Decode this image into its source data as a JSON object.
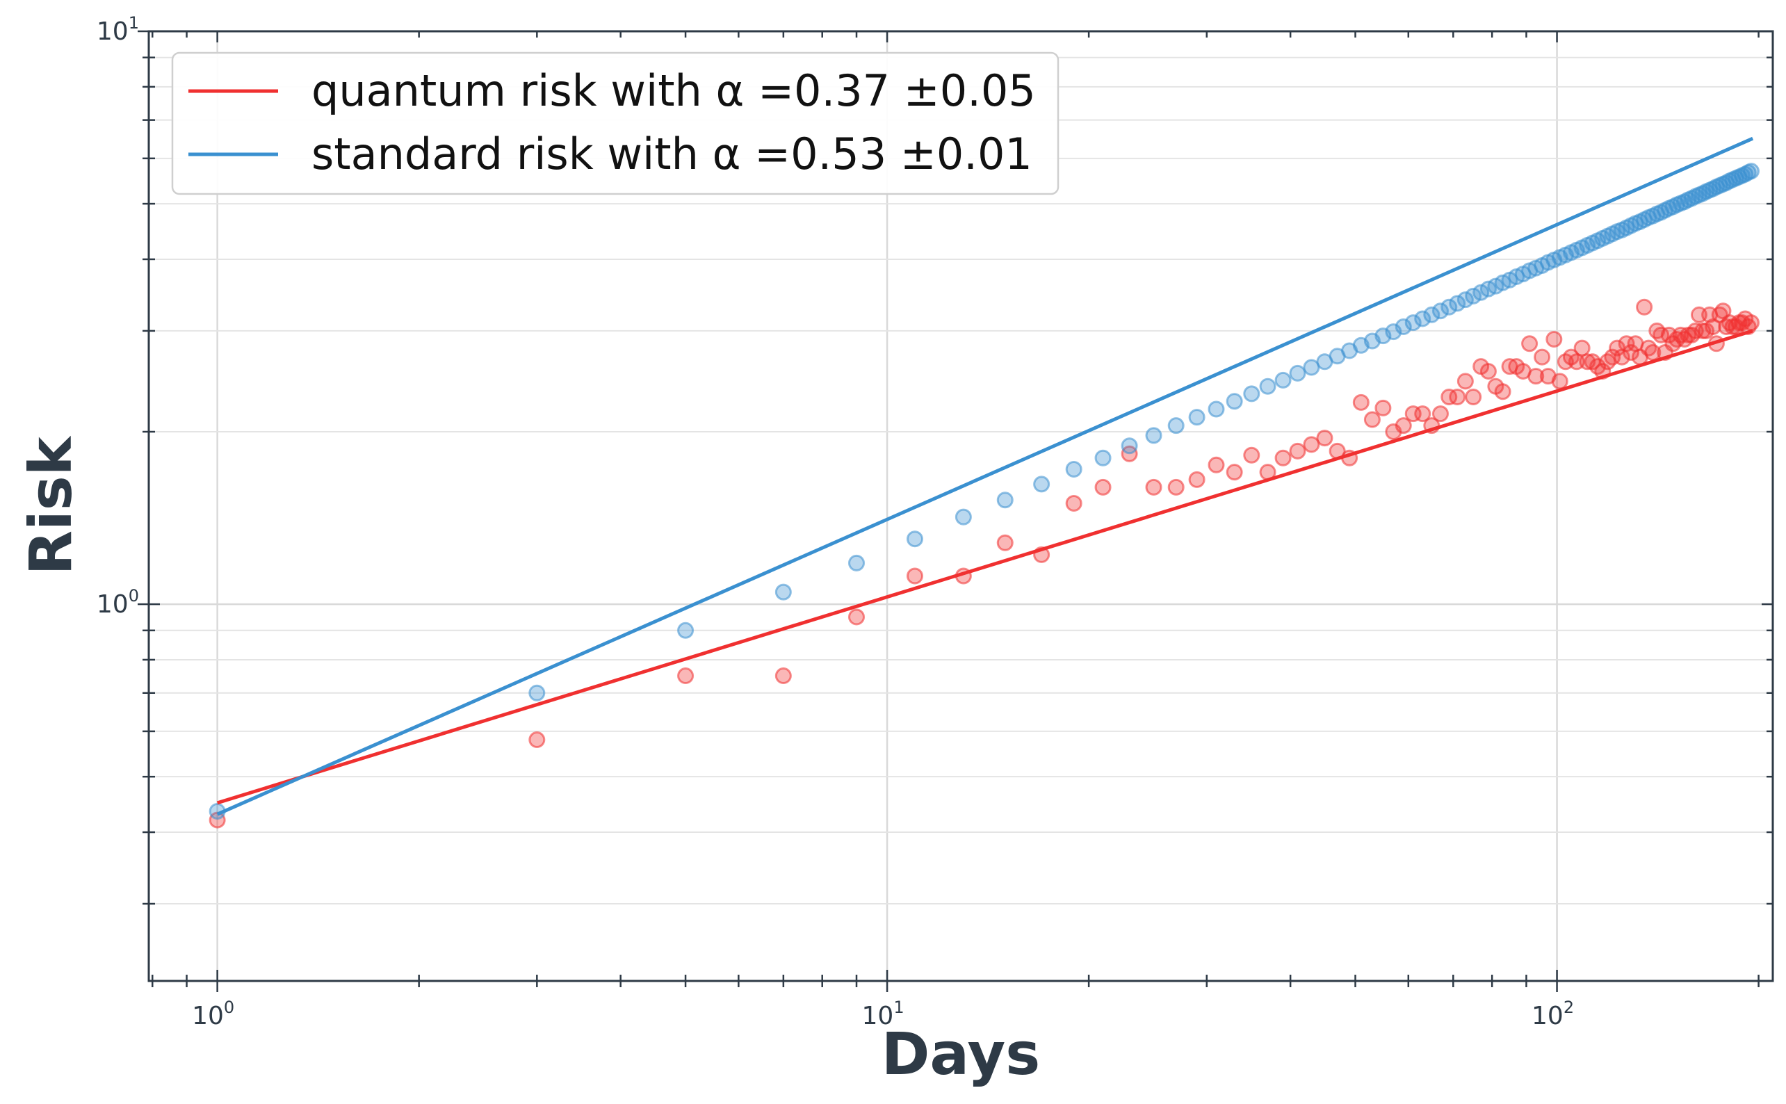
{
  "chart_data": {
    "type": "scatter",
    "xscale": "log",
    "yscale": "log",
    "xlim": [
      0.79,
      210
    ],
    "ylim": [
      0.22,
      10
    ],
    "xlabel": "Days",
    "ylabel": "Risk",
    "grid": true,
    "legend_position": "top-left",
    "x_ticks": [
      {
        "base": "10",
        "exp": "0"
      },
      {
        "base": "10",
        "exp": "1"
      },
      {
        "base": "10",
        "exp": "2"
      }
    ],
    "y_ticks": [
      {
        "base": "10",
        "exp": "0"
      },
      {
        "base": "10",
        "exp": "1"
      }
    ],
    "series": [
      {
        "name": "quantum risk with α =0.37 ±0.05",
        "color": "#f03030",
        "fit": {
          "x": [
            1,
            196
          ],
          "y": [
            0.45,
            3.0
          ]
        },
        "points": [
          [
            1,
            0.42
          ],
          [
            3,
            0.58
          ],
          [
            5,
            0.75
          ],
          [
            7,
            0.75
          ],
          [
            9,
            0.95
          ],
          [
            11,
            1.12
          ],
          [
            13,
            1.12
          ],
          [
            15,
            1.28
          ],
          [
            17,
            1.22
          ],
          [
            19,
            1.5
          ],
          [
            21,
            1.6
          ],
          [
            23,
            1.83
          ],
          [
            25,
            1.6
          ],
          [
            27,
            1.6
          ],
          [
            29,
            1.65
          ],
          [
            31,
            1.75
          ],
          [
            33,
            1.7
          ],
          [
            35,
            1.82
          ],
          [
            37,
            1.7
          ],
          [
            39,
            1.8
          ],
          [
            41,
            1.85
          ],
          [
            43,
            1.9
          ],
          [
            45,
            1.95
          ],
          [
            47,
            1.85
          ],
          [
            49,
            1.8
          ],
          [
            51,
            2.25
          ],
          [
            53,
            2.1
          ],
          [
            55,
            2.2
          ],
          [
            57,
            2.0
          ],
          [
            59,
            2.05
          ],
          [
            61,
            2.15
          ],
          [
            63,
            2.15
          ],
          [
            65,
            2.05
          ],
          [
            67,
            2.15
          ],
          [
            69,
            2.3
          ],
          [
            71,
            2.3
          ],
          [
            73,
            2.45
          ],
          [
            75,
            2.3
          ],
          [
            77,
            2.6
          ],
          [
            79,
            2.55
          ],
          [
            81,
            2.4
          ],
          [
            83,
            2.35
          ],
          [
            85,
            2.6
          ],
          [
            87,
            2.6
          ],
          [
            89,
            2.55
          ],
          [
            91,
            2.85
          ],
          [
            93,
            2.5
          ],
          [
            95,
            2.7
          ],
          [
            97,
            2.5
          ],
          [
            99,
            2.9
          ],
          [
            101,
            2.45
          ],
          [
            103,
            2.65
          ],
          [
            105,
            2.7
          ],
          [
            107,
            2.65
          ],
          [
            109,
            2.8
          ],
          [
            111,
            2.65
          ],
          [
            113,
            2.65
          ],
          [
            115,
            2.6
          ],
          [
            117,
            2.55
          ],
          [
            119,
            2.65
          ],
          [
            121,
            2.7
          ],
          [
            123,
            2.8
          ],
          [
            125,
            2.7
          ],
          [
            127,
            2.85
          ],
          [
            129,
            2.75
          ],
          [
            131,
            2.85
          ],
          [
            133,
            2.7
          ],
          [
            135,
            3.3
          ],
          [
            137,
            2.8
          ],
          [
            139,
            2.75
          ],
          [
            141,
            3.0
          ],
          [
            143,
            2.95
          ],
          [
            145,
            2.75
          ],
          [
            147,
            2.95
          ],
          [
            149,
            2.85
          ],
          [
            151,
            2.9
          ],
          [
            153,
            2.95
          ],
          [
            155,
            2.9
          ],
          [
            157,
            2.95
          ],
          [
            159,
            2.95
          ],
          [
            161,
            3.0
          ],
          [
            163,
            3.2
          ],
          [
            165,
            3.0
          ],
          [
            167,
            3.0
          ],
          [
            169,
            3.2
          ],
          [
            171,
            3.05
          ],
          [
            173,
            2.85
          ],
          [
            175,
            3.2
          ],
          [
            177,
            3.25
          ],
          [
            179,
            3.05
          ],
          [
            181,
            3.1
          ],
          [
            183,
            3.05
          ],
          [
            185,
            3.05
          ],
          [
            187,
            3.1
          ],
          [
            189,
            3.1
          ],
          [
            191,
            3.15
          ],
          [
            193,
            3.05
          ],
          [
            195,
            3.1
          ]
        ]
      },
      {
        "name": "standard risk with α =0.53 ±0.01",
        "color": "#3a90d0",
        "fit": {
          "x": [
            1,
            196
          ],
          "y": [
            0.43,
            6.5
          ]
        },
        "points": [
          [
            1,
            0.435
          ],
          [
            3,
            0.7
          ],
          [
            5,
            0.9
          ],
          [
            7,
            1.05
          ],
          [
            9,
            1.18
          ],
          [
            11,
            1.3
          ],
          [
            13,
            1.42
          ],
          [
            15,
            1.52
          ],
          [
            17,
            1.62
          ],
          [
            19,
            1.72
          ],
          [
            21,
            1.8
          ],
          [
            23,
            1.89
          ],
          [
            25,
            1.97
          ],
          [
            27,
            2.05
          ],
          [
            29,
            2.12
          ],
          [
            31,
            2.19
          ],
          [
            33,
            2.26
          ],
          [
            35,
            2.33
          ],
          [
            37,
            2.4
          ],
          [
            39,
            2.46
          ],
          [
            41,
            2.53
          ],
          [
            43,
            2.59
          ],
          [
            45,
            2.65
          ],
          [
            47,
            2.71
          ],
          [
            49,
            2.77
          ],
          [
            51,
            2.83
          ],
          [
            53,
            2.88
          ],
          [
            55,
            2.94
          ],
          [
            57,
            2.99
          ],
          [
            59,
            3.05
          ],
          [
            61,
            3.1
          ],
          [
            63,
            3.15
          ],
          [
            65,
            3.2
          ],
          [
            67,
            3.25
          ],
          [
            69,
            3.3
          ],
          [
            71,
            3.35
          ],
          [
            73,
            3.4
          ],
          [
            75,
            3.45
          ],
          [
            77,
            3.5
          ],
          [
            79,
            3.55
          ],
          [
            81,
            3.59
          ],
          [
            83,
            3.64
          ],
          [
            85,
            3.68
          ],
          [
            87,
            3.73
          ],
          [
            89,
            3.77
          ],
          [
            91,
            3.82
          ],
          [
            93,
            3.86
          ],
          [
            95,
            3.9
          ],
          [
            97,
            3.95
          ],
          [
            99,
            3.99
          ],
          [
            101,
            4.03
          ],
          [
            103,
            4.07
          ],
          [
            105,
            4.11
          ],
          [
            107,
            4.15
          ],
          [
            109,
            4.19
          ],
          [
            111,
            4.23
          ],
          [
            113,
            4.27
          ],
          [
            115,
            4.31
          ],
          [
            117,
            4.35
          ],
          [
            119,
            4.39
          ],
          [
            121,
            4.43
          ],
          [
            123,
            4.47
          ],
          [
            125,
            4.5
          ],
          [
            127,
            4.54
          ],
          [
            129,
            4.58
          ],
          [
            131,
            4.62
          ],
          [
            133,
            4.65
          ],
          [
            135,
            4.69
          ],
          [
            137,
            4.73
          ],
          [
            139,
            4.76
          ],
          [
            141,
            4.8
          ],
          [
            143,
            4.83
          ],
          [
            145,
            4.87
          ],
          [
            147,
            4.91
          ],
          [
            149,
            4.94
          ],
          [
            151,
            4.98
          ],
          [
            153,
            5.01
          ],
          [
            155,
            5.04
          ],
          [
            157,
            5.08
          ],
          [
            159,
            5.11
          ],
          [
            161,
            5.15
          ],
          [
            163,
            5.18
          ],
          [
            165,
            5.21
          ],
          [
            167,
            5.25
          ],
          [
            169,
            5.28
          ],
          [
            171,
            5.31
          ],
          [
            173,
            5.35
          ],
          [
            175,
            5.38
          ],
          [
            177,
            5.41
          ],
          [
            179,
            5.44
          ],
          [
            181,
            5.48
          ],
          [
            183,
            5.51
          ],
          [
            185,
            5.54
          ],
          [
            187,
            5.57
          ],
          [
            189,
            5.6
          ],
          [
            191,
            5.63
          ],
          [
            193,
            5.67
          ],
          [
            195,
            5.7
          ]
        ]
      }
    ]
  }
}
